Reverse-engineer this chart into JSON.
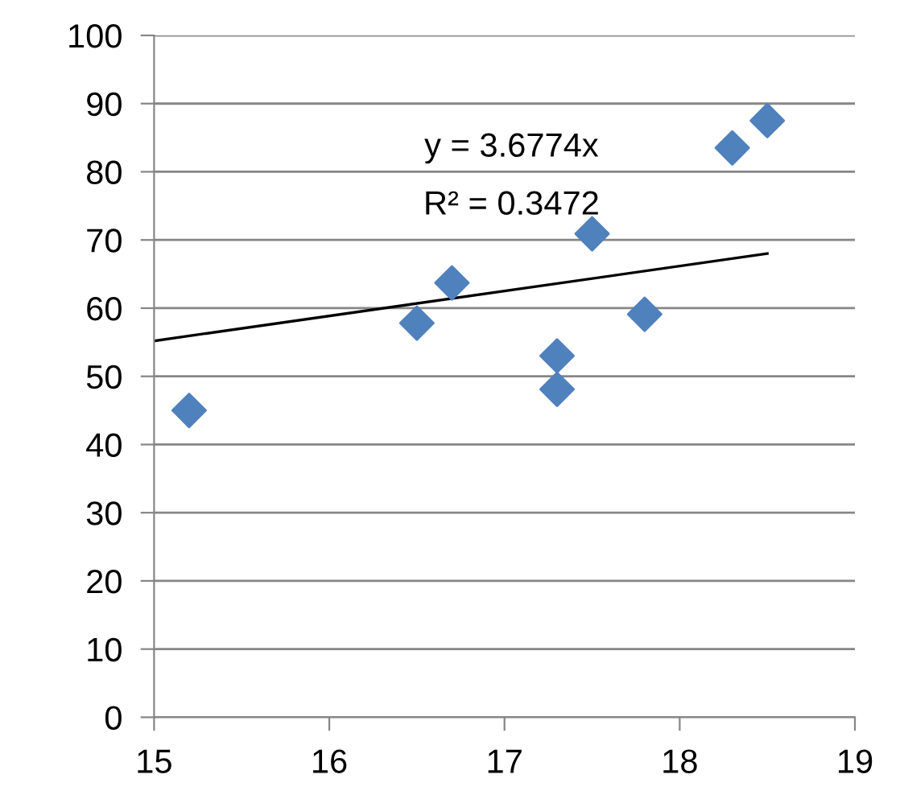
{
  "chart_data": {
    "type": "scatter",
    "grid": "y",
    "x": [
      15.2,
      16.5,
      16.7,
      17.3,
      17.3,
      17.5,
      17.8,
      18.3,
      18.5
    ],
    "series": [
      {
        "marker": "diamond",
        "color": "#4f81bd",
        "values": [
          45.0,
          57.8,
          63.7,
          53.0,
          48.1,
          70.9,
          59.1,
          83.5,
          87.5
        ]
      },
      {
        "type": "line",
        "marker": "none",
        "color": "#000000",
        "x": [
          15,
          18.5
        ],
        "values": [
          55.2,
          68.0
        ]
      }
    ],
    "xlim": [
      15,
      19
    ],
    "xticks": [
      15,
      16,
      17,
      18,
      19
    ],
    "ylim": [
      0,
      100
    ],
    "yticks": [
      0,
      10,
      20,
      30,
      40,
      50,
      60,
      70,
      80,
      90,
      100
    ],
    "annotations": [
      "y = 3.6774x",
      "R² = 0.3472"
    ]
  }
}
